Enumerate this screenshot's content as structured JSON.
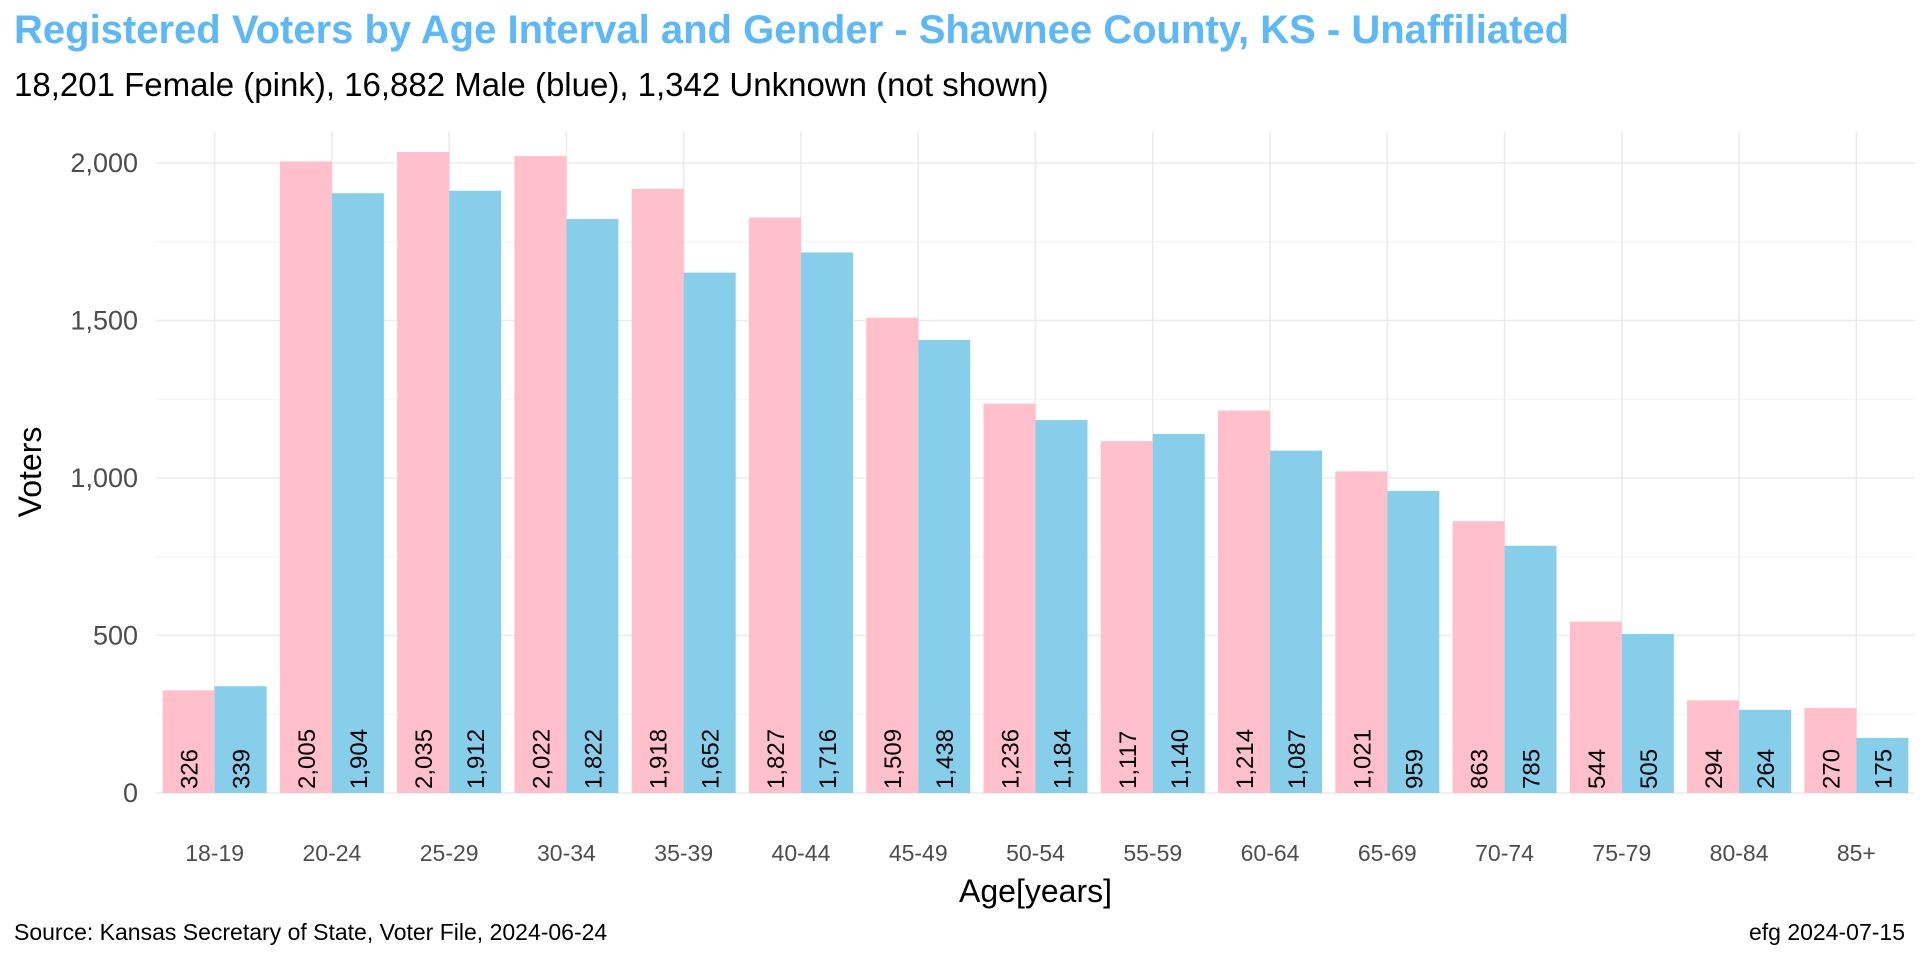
{
  "title": "Registered Voters by Age Interval and Gender - Shawnee County, KS - Unaffiliated",
  "subtitle": "18,201 Female (pink),  16,882 Male (blue),  1,342 Unknown (not shown)",
  "source": "Source: Kansas Secretary of State, Voter File, 2024-06-24",
  "credit": "efg 2024-07-15",
  "chart_data": {
    "type": "bar",
    "xlabel": "Age[years]",
    "ylabel": "Voters",
    "ylim": [
      0,
      2100
    ],
    "yticks": [
      0,
      500,
      1000,
      1500,
      2000
    ],
    "ytick_labels": [
      "0",
      "500",
      "1,000",
      "1,500",
      "2,000"
    ],
    "grid": true,
    "legend": "none",
    "categories": [
      "18-19",
      "20-24",
      "25-29",
      "30-34",
      "35-39",
      "40-44",
      "45-49",
      "50-54",
      "55-59",
      "60-64",
      "65-69",
      "70-74",
      "75-79",
      "80-84",
      "85+"
    ],
    "series": [
      {
        "color": "#ffc0cb",
        "values": [
          326,
          2005,
          2035,
          2022,
          1918,
          1827,
          1509,
          1236,
          1117,
          1214,
          1021,
          863,
          544,
          294,
          270
        ],
        "labels": [
          "326",
          "2,005",
          "2,035",
          "2,022",
          "1,918",
          "1,827",
          "1,509",
          "1,236",
          "1,117",
          "1,214",
          "1,021",
          "863",
          "544",
          "294",
          "270"
        ]
      },
      {
        "color": "#87ceeb",
        "values": [
          339,
          1904,
          1912,
          1822,
          1652,
          1716,
          1438,
          1184,
          1140,
          1087,
          959,
          785,
          505,
          264,
          175
        ],
        "labels": [
          "339",
          "1,904",
          "1,912",
          "1,822",
          "1,652",
          "1,716",
          "1,438",
          "1,184",
          "1,140",
          "1,087",
          "959",
          "785",
          "505",
          "264",
          "175"
        ]
      }
    ]
  }
}
